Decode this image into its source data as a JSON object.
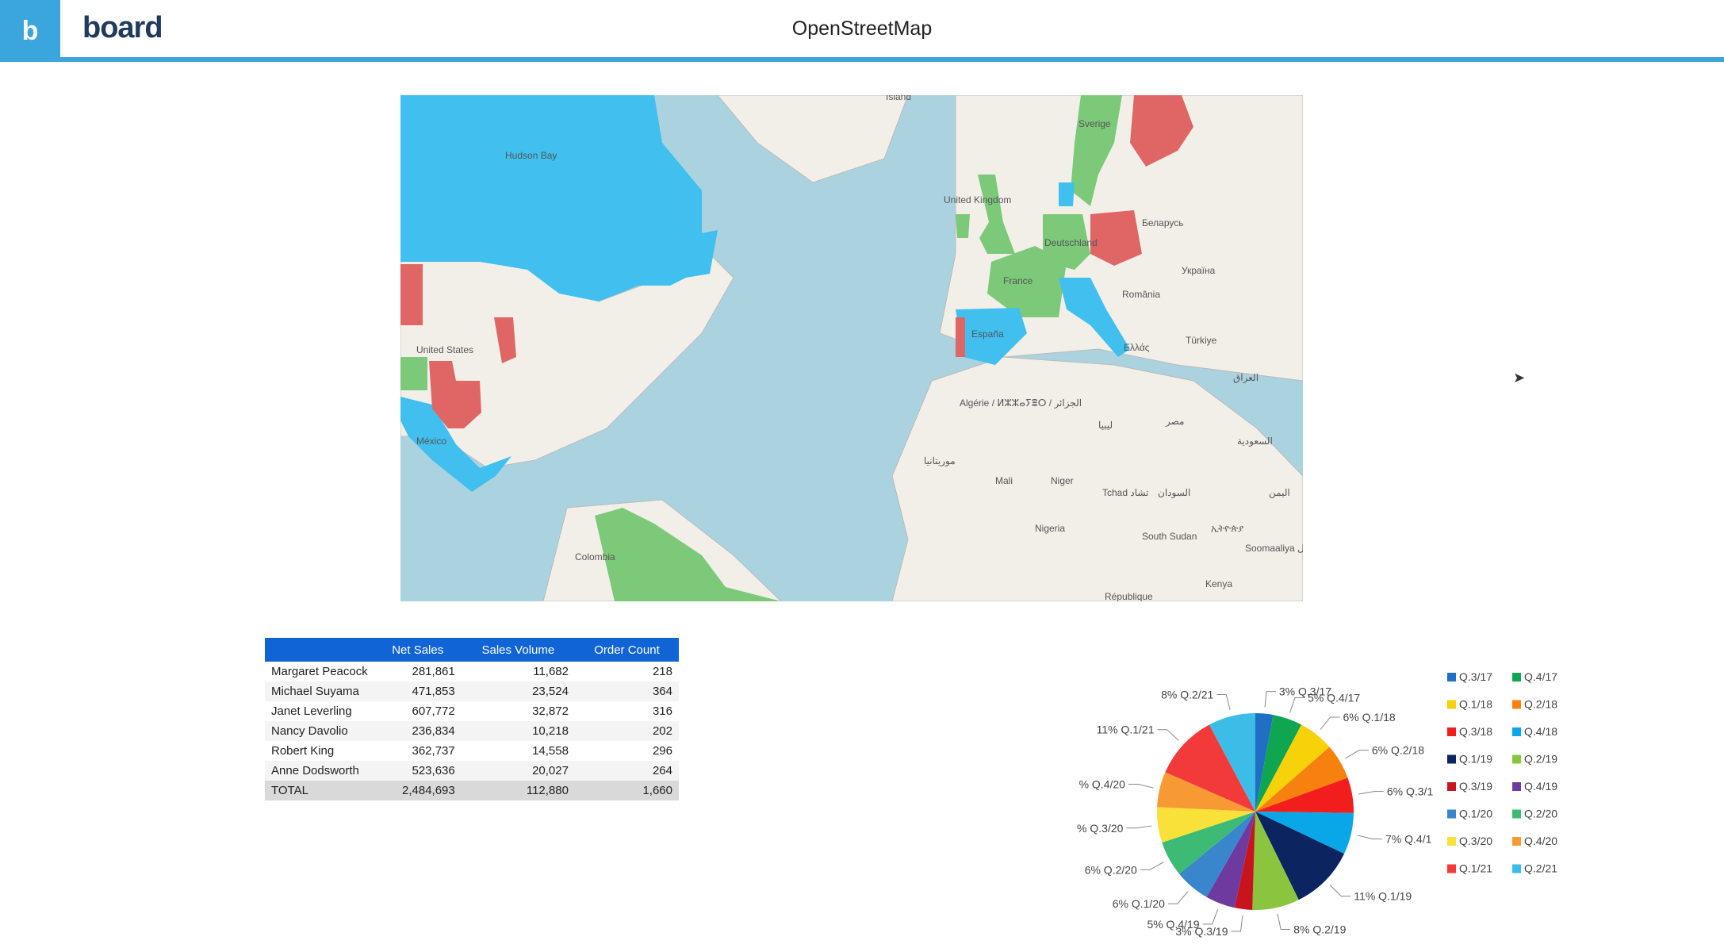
{
  "header": {
    "logo_glyph": "b",
    "brand_text": "board",
    "title": "OpenStreetMap"
  },
  "map": {
    "labels": [
      "Island",
      "Hudson Bay",
      "United States",
      "México",
      "Colombia",
      "United Kingdom",
      "France",
      "España",
      "Deutschland",
      "Sverige",
      "Беларусь",
      "Україна",
      "România",
      "Ελλάς",
      "Türkiye",
      "Algérie / ⵍⵣⵣⴰⵢⴻⵔ / الجزائر",
      "موريتانيا",
      "Mali",
      "Niger",
      "Tchad تشاد",
      "السودان",
      "Nigeria",
      "South Sudan",
      "ኢትዮጵያ",
      "Soomaaliya الصومال",
      "Kenya",
      "République",
      "ليبيا",
      "مصر",
      "العراق",
      "السعودية",
      "اليمن"
    ],
    "colors": {
      "blue": "#41bfee",
      "green": "#7dc97a",
      "red": "#e06666",
      "water": "#aad3df",
      "land": "#f2efe9"
    }
  },
  "table": {
    "columns": [
      "",
      "Net Sales",
      "Sales Volume",
      "Order Count"
    ],
    "rows": [
      [
        "Margaret Peacock",
        "281,861",
        "11,682",
        "218"
      ],
      [
        "Michael Suyama",
        "471,853",
        "23,524",
        "364"
      ],
      [
        "Janet Leverling",
        "607,772",
        "32,872",
        "316"
      ],
      [
        "Nancy Davolio",
        "236,834",
        "10,218",
        "202"
      ],
      [
        "Robert King",
        "362,737",
        "14,558",
        "296"
      ],
      [
        "Anne Dodsworth",
        "523,636",
        "20,027",
        "264"
      ]
    ],
    "total": [
      "TOTAL",
      "2,484,693",
      "112,880",
      "1,660"
    ]
  },
  "chart_data": {
    "type": "pie",
    "categories": [
      "Q.3/17",
      "Q.4/17",
      "Q.1/18",
      "Q.2/18",
      "Q.3/18",
      "Q.4/18",
      "Q.1/19",
      "Q.2/19",
      "Q.3/19",
      "Q.4/19",
      "Q.1/20",
      "Q.2/20",
      "Q.3/20",
      "Q.4/20",
      "Q.1/21",
      "Q.2/21"
    ],
    "values": [
      3,
      5,
      6,
      6,
      6,
      7,
      11,
      8,
      3,
      5,
      6,
      6,
      6,
      6,
      11,
      8
    ],
    "colors": [
      "#1f6fc4",
      "#10a550",
      "#f7d10a",
      "#f7810f",
      "#f21d1d",
      "#0aa7e8",
      "#0c2460",
      "#8bc53f",
      "#c8141d",
      "#6f3aa0",
      "#3a86cc",
      "#3dbb74",
      "#f9e13a",
      "#f89a33",
      "#f23a3a",
      "#3cbde8"
    ],
    "slice_labels": [
      "3% Q.3/17",
      "5% Q.4/17",
      "6% Q.1/18",
      "6% Q.2/18",
      "6% Q.3/1",
      "7% Q.4/1",
      "11% Q.1/19",
      "8% Q.2/19",
      "3% Q.3/19",
      "5% Q.4/19",
      "6% Q.1/20",
      "6% Q.2/20",
      "% Q.3/20",
      "% Q.4/20",
      "11% Q.1/21",
      "8% Q.2/21"
    ],
    "legend": "right"
  }
}
